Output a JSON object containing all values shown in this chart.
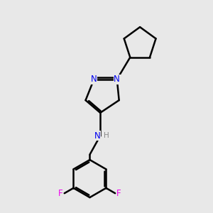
{
  "bg_color": "#e8e8e8",
  "bond_color": "#000000",
  "N_color": "#0000ee",
  "F_color": "#ee00ee",
  "NH_H_color": "#888888",
  "line_width": 1.8,
  "figsize": [
    3.0,
    3.0
  ],
  "dpi": 100,
  "xlim": [
    0,
    10
  ],
  "ylim": [
    0,
    10
  ]
}
